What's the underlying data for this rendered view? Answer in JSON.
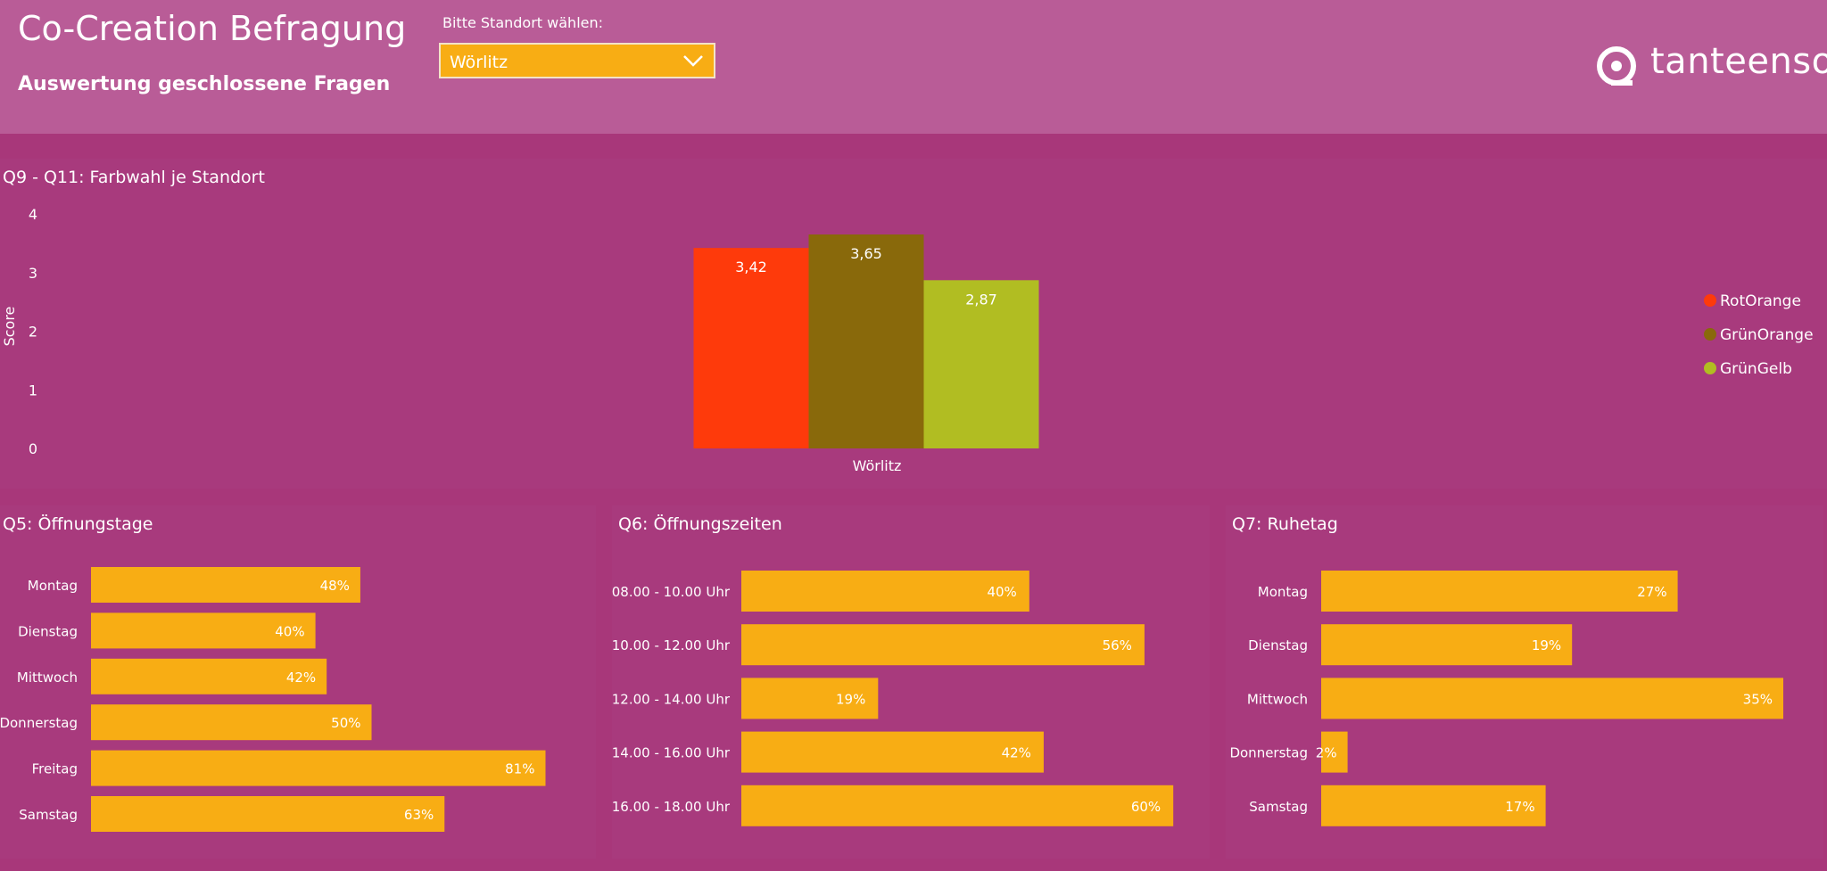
{
  "header": {
    "title": "Co-Creation Befragung",
    "subtitle": "Auswertung geschlossene Fragen",
    "dropdown_label": "Bitte Standort wählen:",
    "dropdown_value": "Wörlitz",
    "logo_text": "tanteenso"
  },
  "colors": {
    "accent": "#f8ad14",
    "header_bg": "#b95c97",
    "panel_bg": "#a83a7d",
    "page_bg": "#a8377a"
  },
  "panels": {
    "colors": {
      "title": "Q9 - Q11: Farbwahl je Standort"
    },
    "days": {
      "title": "Q5: Öffnungstage"
    },
    "times": {
      "title": "Q6: Öffnungszeiten"
    },
    "rest": {
      "title": "Q7: Ruhetag"
    }
  },
  "chart_data": [
    {
      "id": "colors",
      "type": "bar",
      "title": "Q9 - Q11: Farbwahl je Standort",
      "ylabel": "Score",
      "xlabel": "",
      "ylim": [
        0,
        4
      ],
      "yticks": [
        0,
        1,
        2,
        3,
        4
      ],
      "categories": [
        "Wörlitz"
      ],
      "series": [
        {
          "name": "RotOrange",
          "color": "#fe3a0b",
          "values": [
            3.42
          ],
          "labels": [
            "3,42"
          ]
        },
        {
          "name": "GrünOrange",
          "color": "#89690b",
          "values": [
            3.65
          ],
          "labels": [
            "3,65"
          ]
        },
        {
          "name": "GrünGelb",
          "color": "#b1bd22",
          "values": [
            2.87
          ],
          "labels": [
            "2,87"
          ]
        }
      ],
      "legend": "right",
      "grid": false
    },
    {
      "id": "days",
      "type": "bar",
      "orientation": "horizontal",
      "title": "Q5: Öffnungstage",
      "categories": [
        "Montag",
        "Dienstag",
        "Mittwoch",
        "Donnerstag",
        "Freitag",
        "Samstag"
      ],
      "values": [
        48,
        40,
        42,
        50,
        81,
        63
      ],
      "labels": [
        "48%",
        "40%",
        "42%",
        "50%",
        "81%",
        "63%"
      ],
      "color": "#f8ad14"
    },
    {
      "id": "times",
      "type": "bar",
      "orientation": "horizontal",
      "title": "Q6: Öffnungszeiten",
      "categories": [
        "08.00 - 10.00 Uhr",
        "10.00 - 12.00 Uhr",
        "12.00 - 14.00 Uhr",
        "14.00 - 16.00 Uhr",
        "16.00 - 18.00 Uhr"
      ],
      "values": [
        40,
        56,
        19,
        42,
        60
      ],
      "labels": [
        "40%",
        "56%",
        "19%",
        "42%",
        "60%"
      ],
      "color": "#f8ad14"
    },
    {
      "id": "rest",
      "type": "bar",
      "orientation": "horizontal",
      "title": "Q7: Ruhetag",
      "categories": [
        "Montag",
        "Dienstag",
        "Mittwoch",
        "Donnerstag",
        "Samstag"
      ],
      "values": [
        27,
        19,
        35,
        2,
        17
      ],
      "labels": [
        "27%",
        "19%",
        "35%",
        "2%",
        "17%"
      ],
      "color": "#f8ad14"
    }
  ]
}
